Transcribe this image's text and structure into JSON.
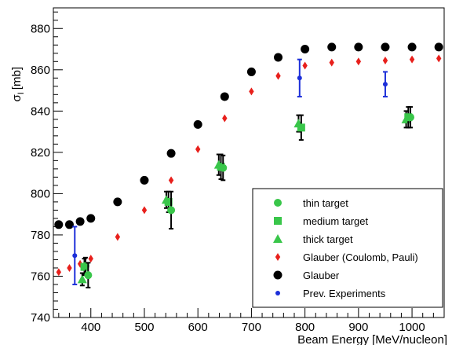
{
  "chart_data": {
    "type": "scatter",
    "title": "",
    "xlabel": "Beam Energy [MeV/nucleon]",
    "ylabel": "σ",
    "ylabel_sub": "I",
    "ylabel_unit": "[mb]",
    "xlim": [
      330,
      1060
    ],
    "ylim": [
      740,
      890
    ],
    "x_ticks": [
      400,
      500,
      600,
      700,
      800,
      900,
      1000
    ],
    "y_ticks": [
      740,
      760,
      780,
      800,
      820,
      840,
      860,
      880
    ],
    "grid": false,
    "legend_position": "bottom-right",
    "series": [
      {
        "name": "thin target",
        "marker": "circle",
        "color": "#39c64a",
        "points": [
          {
            "x": 390,
            "y": 765,
            "err": 4
          },
          {
            "x": 395,
            "y": 760.5,
            "err": 6
          },
          {
            "x": 550,
            "y": 792,
            "err": 9
          },
          {
            "x": 647,
            "y": 812.5,
            "err": 6
          },
          {
            "x": 997,
            "y": 837,
            "err": 5
          }
        ]
      },
      {
        "name": "medium target",
        "marker": "square",
        "color": "#39c64a",
        "points": [
          {
            "x": 388,
            "y": 764.5,
            "err": 4
          },
          {
            "x": 545,
            "y": 796,
            "err": 5
          },
          {
            "x": 643,
            "y": 813,
            "err": 6
          },
          {
            "x": 793,
            "y": 832,
            "err": 6
          },
          {
            "x": 993,
            "y": 837,
            "err": 5
          }
        ]
      },
      {
        "name": "thick target",
        "marker": "triangle",
        "color": "#39c64a",
        "points": [
          {
            "x": 384,
            "y": 758.5,
            "err": 3
          },
          {
            "x": 541,
            "y": 797,
            "err": 4
          },
          {
            "x": 639,
            "y": 814,
            "err": 5
          },
          {
            "x": 788,
            "y": 834,
            "err": 4
          },
          {
            "x": 989,
            "y": 836,
            "err": 4
          }
        ]
      },
      {
        "name": "Glauber (Coulomb, Pauli)",
        "marker": "diamond",
        "color": "#e8201c",
        "points": [
          {
            "x": 340,
            "y": 762
          },
          {
            "x": 360,
            "y": 764
          },
          {
            "x": 380,
            "y": 766
          },
          {
            "x": 400,
            "y": 768.5
          },
          {
            "x": 450,
            "y": 779
          },
          {
            "x": 500,
            "y": 792
          },
          {
            "x": 550,
            "y": 806.5
          },
          {
            "x": 600,
            "y": 821.5
          },
          {
            "x": 650,
            "y": 836.5
          },
          {
            "x": 700,
            "y": 849.5
          },
          {
            "x": 750,
            "y": 857
          },
          {
            "x": 800,
            "y": 862
          },
          {
            "x": 850,
            "y": 863.5
          },
          {
            "x": 900,
            "y": 864
          },
          {
            "x": 950,
            "y": 864.5
          },
          {
            "x": 1000,
            "y": 865
          },
          {
            "x": 1050,
            "y": 865.5
          }
        ]
      },
      {
        "name": "Glauber",
        "marker": "circle-large",
        "color": "#000000",
        "points": [
          {
            "x": 340,
            "y": 785
          },
          {
            "x": 360,
            "y": 785
          },
          {
            "x": 380,
            "y": 786.5
          },
          {
            "x": 400,
            "y": 788
          },
          {
            "x": 450,
            "y": 796
          },
          {
            "x": 500,
            "y": 806.5
          },
          {
            "x": 550,
            "y": 819.5
          },
          {
            "x": 600,
            "y": 833.5
          },
          {
            "x": 650,
            "y": 847
          },
          {
            "x": 700,
            "y": 859
          },
          {
            "x": 750,
            "y": 866
          },
          {
            "x": 800,
            "y": 870
          },
          {
            "x": 850,
            "y": 871
          },
          {
            "x": 900,
            "y": 871
          },
          {
            "x": 950,
            "y": 871
          },
          {
            "x": 1000,
            "y": 871
          },
          {
            "x": 1050,
            "y": 871
          }
        ]
      },
      {
        "name": "Prev. Experiments",
        "marker": "circle-small",
        "color": "#1c2fd9",
        "points": [
          {
            "x": 370,
            "y": 770,
            "err": 14
          },
          {
            "x": 790,
            "y": 856,
            "err": 9
          },
          {
            "x": 950,
            "y": 853,
            "err": 6
          }
        ]
      }
    ]
  }
}
